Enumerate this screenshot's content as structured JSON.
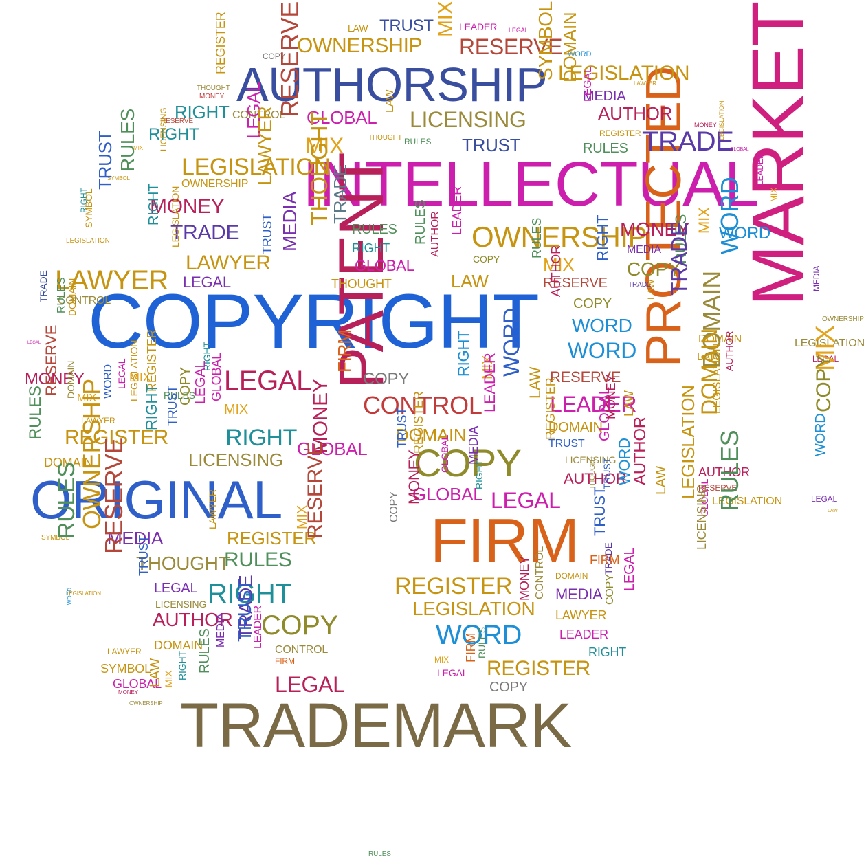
{
  "palette": {
    "blue": "#2f5fc8",
    "royal": "#1f62d6",
    "navy": "#3a4ea0",
    "sky": "#1c8fd6",
    "purple": "#7a2fb0",
    "violet": "#5a3aa8",
    "magenta": "#cc1fae",
    "pink": "#d0207f",
    "crimson": "#b8205a",
    "red": "#c23a3a",
    "brick": "#b5473a",
    "orange": "#d9621a",
    "amber": "#e2a21a",
    "gold": "#c79412",
    "olive": "#8f8a2a",
    "khaki": "#9a8a3a",
    "brown": "#7a6a45",
    "tan": "#9a8562",
    "teal": "#1f8f9a",
    "slate": "#5a7a8a",
    "green": "#4f8f5a",
    "grey": "#7a7a7a"
  },
  "words": [
    {
      "text": "COPYRIGHT",
      "color": "royal"
    },
    {
      "text": "INTELLECTUAL",
      "color": "magenta"
    },
    {
      "text": "TRADEMARK",
      "color": "brown"
    },
    {
      "text": "MARKET",
      "color": "pink"
    },
    {
      "text": "PATENT",
      "color": "crimson"
    },
    {
      "text": "FIRM",
      "color": "orange"
    },
    {
      "text": "PROTECTED",
      "color": "orange"
    },
    {
      "text": "ORIGINAL",
      "color": "blue"
    },
    {
      "text": "AUTHORSHIP",
      "color": "navy"
    },
    {
      "text": "COPY",
      "color": "olive"
    },
    {
      "text": "OWNERSHIP",
      "color": "gold"
    },
    {
      "text": "RESERVE",
      "color": "brick"
    },
    {
      "text": "TRUST",
      "color": "navy"
    },
    {
      "text": "LAW",
      "color": "gold"
    },
    {
      "text": "LEADER",
      "color": "magenta"
    },
    {
      "text": "MIX",
      "color": "amber"
    },
    {
      "text": "LEGAL",
      "color": "magenta"
    },
    {
      "text": "COPY",
      "color": "grey"
    },
    {
      "text": "WORD",
      "color": "sky"
    },
    {
      "text": "RULES",
      "color": "green"
    },
    {
      "text": "LEGISLATION",
      "color": "gold"
    },
    {
      "text": "MEDIA",
      "color": "purple"
    },
    {
      "text": "THOUGHT",
      "color": "khaki"
    },
    {
      "text": "MONEY",
      "color": "red"
    },
    {
      "text": "REGISTER",
      "color": "gold"
    },
    {
      "text": "RIGHT",
      "color": "teal"
    },
    {
      "text": "CONTROL",
      "color": "khaki"
    },
    {
      "text": "GLOBAL",
      "color": "magenta"
    },
    {
      "text": "LICENSING",
      "color": "khaki"
    },
    {
      "text": "SYMBOL",
      "color": "gold"
    },
    {
      "text": "DOMAIN",
      "color": "gold"
    },
    {
      "text": "AUTHOR",
      "color": "crimson"
    },
    {
      "text": "LAWYER",
      "color": "gold"
    },
    {
      "text": "TRADE",
      "color": "violet"
    },
    {
      "text": "MONEY",
      "color": "crimson"
    },
    {
      "text": "RESERVE",
      "color": "brick"
    },
    {
      "text": "RIGHT",
      "color": "teal"
    },
    {
      "text": "MIX",
      "color": "amber"
    },
    {
      "text": "THOUGHT",
      "color": "gold"
    },
    {
      "text": "LAW",
      "color": "gold"
    },
    {
      "text": "RULES",
      "color": "green"
    },
    {
      "text": "TRUST",
      "color": "navy"
    },
    {
      "text": "LEGAL",
      "color": "magenta"
    },
    {
      "text": "REGISTER",
      "color": "gold"
    },
    {
      "text": "RULES",
      "color": "green"
    },
    {
      "text": "LEGISLATION",
      "color": "gold"
    },
    {
      "text": "GLOBAL",
      "color": "magenta"
    },
    {
      "text": "MIX",
      "color": "amber"
    },
    {
      "text": "LEGISLATION",
      "color": "gold"
    },
    {
      "text": "LEGAL",
      "color": "magenta"
    },
    {
      "text": "RESERVE",
      "color": "brick"
    },
    {
      "text": "LICENSING",
      "color": "gold"
    },
    {
      "text": "OWNERSHIP",
      "color": "gold"
    },
    {
      "text": "SYMBOL",
      "color": "gold"
    },
    {
      "text": "MONEY",
      "color": "crimson"
    },
    {
      "text": "LAWYER",
      "color": "gold"
    },
    {
      "text": "TRUST",
      "color": "blue"
    },
    {
      "text": "RULES",
      "color": "green"
    },
    {
      "text": "LEADER",
      "color": "magenta"
    },
    {
      "text": "MIX",
      "color": "amber"
    },
    {
      "text": "RIGHT",
      "color": "teal"
    },
    {
      "text": "TRADE",
      "color": "violet"
    },
    {
      "text": "THOUGHT",
      "color": "gold"
    },
    {
      "text": "TRADE",
      "color": "slate"
    },
    {
      "text": "RULES",
      "color": "green"
    },
    {
      "text": "OWNERSHIP",
      "color": "gold"
    },
    {
      "text": "MONEY",
      "color": "crimson"
    },
    {
      "text": "WORD",
      "color": "sky"
    },
    {
      "text": "LEGISLATION",
      "color": "gold"
    },
    {
      "text": "SYMBOL",
      "color": "gold"
    },
    {
      "text": "RIGHT",
      "color": "teal"
    },
    {
      "text": "GLOBAL",
      "color": "magenta"
    },
    {
      "text": "RULES",
      "color": "green"
    },
    {
      "text": "AUTHOR",
      "color": "crimson"
    },
    {
      "text": "LEADER",
      "color": "magenta"
    },
    {
      "text": "COPY",
      "color": "olive"
    },
    {
      "text": "LAW",
      "color": "gold"
    },
    {
      "text": "LAWYER",
      "color": "gold"
    },
    {
      "text": "TRUST",
      "color": "blue"
    },
    {
      "text": "MEDIA",
      "color": "purple"
    },
    {
      "text": "THOUGHT",
      "color": "gold"
    },
    {
      "text": "RIGHT",
      "color": "teal"
    },
    {
      "text": "LEGISLATION",
      "color": "gold"
    },
    {
      "text": "LEGAL",
      "color": "purple"
    },
    {
      "text": "LAWYER",
      "color": "gold"
    },
    {
      "text": "RULES",
      "color": "green"
    },
    {
      "text": "MIX",
      "color": "amber"
    },
    {
      "text": "RESERVE",
      "color": "brick"
    },
    {
      "text": "RIGHT",
      "color": "blue"
    },
    {
      "text": "MEDIA",
      "color": "purple"
    },
    {
      "text": "COPY",
      "color": "olive"
    },
    {
      "text": "TRADE",
      "color": "violet"
    },
    {
      "text": "RULES",
      "color": "green"
    },
    {
      "text": "MIX",
      "color": "amber"
    },
    {
      "text": "WORD",
      "color": "sky"
    },
    {
      "text": "CONTROL",
      "color": "khaki"
    },
    {
      "text": "TRADE",
      "color": "navy"
    },
    {
      "text": "RULES",
      "color": "green"
    },
    {
      "text": "DOMAIN",
      "color": "gold"
    },
    {
      "text": "LEGAL",
      "color": "magenta"
    },
    {
      "text": "AUTHOR",
      "color": "crimson"
    },
    {
      "text": "COPY",
      "color": "olive"
    },
    {
      "text": "WORD",
      "color": "sky"
    },
    {
      "text": "LAW",
      "color": "gold"
    },
    {
      "text": "TRADE",
      "color": "violet"
    },
    {
      "text": "DOMAIN",
      "color": "gold"
    },
    {
      "text": "LAW",
      "color": "gold"
    },
    {
      "text": "MEDIA",
      "color": "purple"
    },
    {
      "text": "OWNERSHIP",
      "color": "khaki"
    },
    {
      "text": "LEGISLATION",
      "color": "khaki"
    },
    {
      "text": "LEGAL",
      "color": "crimson"
    },
    {
      "text": "MONEY",
      "color": "crimson"
    },
    {
      "text": "MIX",
      "color": "amber"
    },
    {
      "text": "WORD",
      "color": "sky"
    },
    {
      "text": "RIGHT",
      "color": "teal"
    },
    {
      "text": "LEGAL",
      "color": "crimson"
    },
    {
      "text": "FIRM",
      "color": "orange"
    },
    {
      "text": "COPY",
      "color": "grey"
    },
    {
      "text": "CONTROL",
      "color": "red"
    },
    {
      "text": "RIGHT",
      "color": "sky"
    },
    {
      "text": "MIX",
      "color": "amber"
    },
    {
      "text": "WORD",
      "color": "blue"
    },
    {
      "text": "RESERVE",
      "color": "brick"
    },
    {
      "text": "LEADER",
      "color": "magenta"
    },
    {
      "text": "DOMAIN",
      "color": "khaki"
    },
    {
      "text": "AUTHOR",
      "color": "crimson"
    },
    {
      "text": "MIX",
      "color": "amber"
    },
    {
      "text": "MIX",
      "color": "amber"
    },
    {
      "text": "RULES",
      "color": "green"
    },
    {
      "text": "RESERVE",
      "color": "brick"
    },
    {
      "text": "DOMAIN",
      "color": "khaki"
    },
    {
      "text": "LAWYER",
      "color": "gold"
    },
    {
      "text": "WORD",
      "color": "blue"
    },
    {
      "text": "LEGAL",
      "color": "magenta"
    },
    {
      "text": "LEGISLATION",
      "color": "gold"
    },
    {
      "text": "REGISTER",
      "color": "gold"
    },
    {
      "text": "RULES",
      "color": "green"
    },
    {
      "text": "COPY",
      "color": "olive"
    },
    {
      "text": "LEGAL",
      "color": "magenta"
    },
    {
      "text": "GLOBAL",
      "color": "magenta"
    },
    {
      "text": "MIX",
      "color": "amber"
    },
    {
      "text": "RIGHT",
      "color": "teal"
    },
    {
      "text": "REGISTER",
      "color": "gold"
    },
    {
      "text": "DOMAIN",
      "color": "gold"
    },
    {
      "text": "RIGHT",
      "color": "teal"
    },
    {
      "text": "TRUST",
      "color": "blue"
    },
    {
      "text": "LICENSING",
      "color": "khaki"
    },
    {
      "text": "GLOBAL",
      "color": "magenta"
    },
    {
      "text": "MONEY",
      "color": "crimson"
    },
    {
      "text": "DOMAIN",
      "color": "gold"
    },
    {
      "text": "TRUST",
      "color": "blue"
    },
    {
      "text": "REGISTER",
      "color": "gold"
    },
    {
      "text": "GLOBAL",
      "color": "magenta"
    },
    {
      "text": "MEDIA",
      "color": "purple"
    },
    {
      "text": "LEADER",
      "color": "magenta"
    },
    {
      "text": "LAW",
      "color": "gold"
    },
    {
      "text": "REGISTER",
      "color": "gold"
    },
    {
      "text": "DOMAIN",
      "color": "gold"
    },
    {
      "text": "TRUST",
      "color": "blue"
    },
    {
      "text": "LICENSING",
      "color": "khaki"
    },
    {
      "text": "AUTHOR",
      "color": "crimson"
    },
    {
      "text": "GLOBAL",
      "color": "magenta"
    },
    {
      "text": "MONEY",
      "color": "crimson"
    },
    {
      "text": "LAW",
      "color": "gold"
    },
    {
      "text": "DOMAIN",
      "color": "gold"
    },
    {
      "text": "LEGISLATION",
      "color": "gold"
    },
    {
      "text": "AUTHOR",
      "color": "crimson"
    },
    {
      "text": "RESERVE",
      "color": "brick"
    },
    {
      "text": "LEGISLATION",
      "color": "gold"
    },
    {
      "text": "RULES",
      "color": "green"
    },
    {
      "text": "LEGAL",
      "color": "purple"
    },
    {
      "text": "LAW",
      "color": "gold"
    },
    {
      "text": "WORD",
      "color": "sky"
    },
    {
      "text": "COPY",
      "color": "olive"
    },
    {
      "text": "MEDIA",
      "color": "purple"
    },
    {
      "text": "REGISTER",
      "color": "gold"
    },
    {
      "text": "LAWYER",
      "color": "gold"
    },
    {
      "text": "MIX",
      "color": "amber"
    },
    {
      "text": "RESERVE",
      "color": "brick"
    },
    {
      "text": "GLOBAL",
      "color": "magenta"
    },
    {
      "text": "RIGHT",
      "color": "teal"
    },
    {
      "text": "LEGAL",
      "color": "magenta"
    },
    {
      "text": "THOUGHT",
      "color": "khaki"
    },
    {
      "text": "TRUST",
      "color": "blue"
    },
    {
      "text": "WORD",
      "color": "sky"
    },
    {
      "text": "AUTHOR",
      "color": "crimson"
    },
    {
      "text": "LAW",
      "color": "gold"
    },
    {
      "text": "LEGISLATION",
      "color": "gold"
    },
    {
      "text": "GLOBAL",
      "color": "magenta"
    },
    {
      "text": "LICENSING",
      "color": "khaki"
    },
    {
      "text": "SYMBOL",
      "color": "gold"
    },
    {
      "text": "RULES",
      "color": "green"
    },
    {
      "text": "OWNERSHIP",
      "color": "gold"
    },
    {
      "text": "RESERVE",
      "color": "brick"
    },
    {
      "text": "THOUGHT",
      "color": "khaki"
    },
    {
      "text": "RULES",
      "color": "green"
    },
    {
      "text": "LEGAL",
      "color": "purple"
    },
    {
      "text": "RIGHT",
      "color": "teal"
    },
    {
      "text": "LICENSING",
      "color": "khaki"
    },
    {
      "text": "AUTHOR",
      "color": "crimson"
    },
    {
      "text": "TRUST",
      "color": "blue"
    },
    {
      "text": "WORD",
      "color": "sky"
    },
    {
      "text": "LEGISLATION",
      "color": "gold"
    },
    {
      "text": "DOMAIN",
      "color": "gold"
    },
    {
      "text": "COPY",
      "color": "olive"
    },
    {
      "text": "TRADE",
      "color": "violet"
    },
    {
      "text": "LAWYER",
      "color": "gold"
    },
    {
      "text": "SYMBOL",
      "color": "gold"
    },
    {
      "text": "GLOBAL",
      "color": "magenta"
    },
    {
      "text": "MONEY",
      "color": "crimson"
    },
    {
      "text": "OWNERSHIP",
      "color": "khaki"
    },
    {
      "text": "LAW",
      "color": "gold"
    },
    {
      "text": "MIX",
      "color": "amber"
    },
    {
      "text": "RIGHT",
      "color": "teal"
    },
    {
      "text": "RULES",
      "color": "green"
    },
    {
      "text": "MEDIA",
      "color": "purple"
    },
    {
      "text": "TRUST",
      "color": "blue"
    },
    {
      "text": "LEADER",
      "color": "magenta"
    },
    {
      "text": "CONTROL",
      "color": "khaki"
    },
    {
      "text": "FIRM",
      "color": "orange"
    },
    {
      "text": "LEGAL",
      "color": "crimson"
    },
    {
      "text": "COPY",
      "color": "grey"
    },
    {
      "text": "MONEY",
      "color": "crimson"
    },
    {
      "text": "REGISTER",
      "color": "gold"
    },
    {
      "text": "LEGISLATION",
      "color": "gold"
    },
    {
      "text": "WORD",
      "color": "sky"
    },
    {
      "text": "REGISTER",
      "color": "gold"
    },
    {
      "text": "MIX",
      "color": "amber"
    },
    {
      "text": "LEGAL",
      "color": "magenta"
    },
    {
      "text": "FIRM",
      "color": "orange"
    },
    {
      "text": "RULES",
      "color": "green"
    },
    {
      "text": "COPY",
      "color": "grey"
    },
    {
      "text": "MONEY",
      "color": "crimson"
    },
    {
      "text": "CONTROL",
      "color": "khaki"
    },
    {
      "text": "DOMAIN",
      "color": "gold"
    },
    {
      "text": "MEDIA",
      "color": "purple"
    },
    {
      "text": "LAWYER",
      "color": "gold"
    },
    {
      "text": "LEADER",
      "color": "magenta"
    },
    {
      "text": "RIGHT",
      "color": "teal"
    },
    {
      "text": "TRADE",
      "color": "violet"
    },
    {
      "text": "COPY",
      "color": "olive"
    },
    {
      "text": "LEGAL",
      "color": "magenta"
    },
    {
      "text": "FIRM",
      "color": "orange"
    },
    {
      "text": "TRUST",
      "color": "blue"
    },
    {
      "text": "RIGHT",
      "color": "teal"
    },
    {
      "text": "TRUST",
      "color": "blue"
    },
    {
      "text": "FIRM",
      "color": "orange"
    },
    {
      "text": "COPY",
      "color": "grey"
    },
    {
      "text": "LAW",
      "color": "gold"
    },
    {
      "text": "LEADER",
      "color": "magenta"
    },
    {
      "text": "LEGAL",
      "color": "magenta"
    },
    {
      "text": "TRADE",
      "color": "violet"
    }
  ]
}
